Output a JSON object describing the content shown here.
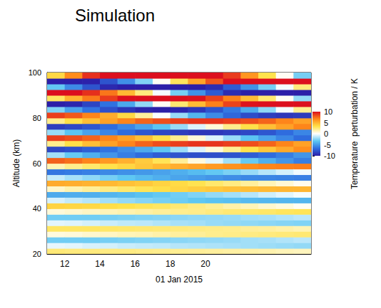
{
  "chart_data": {
    "type": "heatmap",
    "title": "Simulation",
    "x_label": "01 Jan 2015",
    "y_label": "Altitude (km)",
    "xlim": [
      11,
      26
    ],
    "xticks": [
      12,
      14,
      16,
      18,
      20
    ],
    "ylim": [
      20,
      100
    ],
    "yticks": [
      20,
      40,
      60,
      80,
      100
    ],
    "x": [
      11.5,
      12.5,
      13.5,
      14.5,
      15.5,
      16.5,
      17.5,
      18.5,
      19.5,
      20.5,
      21.5,
      22.5,
      23.5,
      24.5,
      25.5
    ],
    "y": [
      21.25,
      23.75,
      26.25,
      28.75,
      31.25,
      33.75,
      36.25,
      38.75,
      41.25,
      43.75,
      46.25,
      48.75,
      51.25,
      53.75,
      56.25,
      58.75,
      61.25,
      63.75,
      66.25,
      68.75,
      71.25,
      73.75,
      76.25,
      78.75,
      81.25,
      83.75,
      86.25,
      88.75,
      91.25,
      93.75,
      96.25,
      98.75
    ],
    "cells": [
      [
        2.5,
        -0.5,
        -2.9,
        0.6,
        2.9,
        -0.6,
        -2.9,
        0.7,
        3.9,
        -0.8,
        -4.4,
        1.0,
        5.4,
        -1.2,
        -6.4,
        1.4,
        7.8,
        -1.9,
        -8.3,
        2.1,
        8.7,
        -2.1,
        -8.7,
        2.1,
        8.7,
        -2.6,
        -10.6,
        2.9,
        11.6,
        -3.2,
        -12.5,
        3.7
      ],
      [
        2.4,
        -0.6,
        -2.9,
        0.7,
        2.9,
        -0.7,
        -2.9,
        0.9,
        3.8,
        -1.2,
        -4.3,
        1.5,
        5.3,
        -1.8,
        -6.2,
        2.1,
        7.4,
        -3.1,
        -7.9,
        3.4,
        8.3,
        -3.4,
        -8.3,
        3.4,
        8.0,
        -4.7,
        -9.7,
        5.1,
        10.6,
        -5.6,
        -11.5,
        6.6
      ],
      [
        2.4,
        -0.8,
        -2.9,
        0.9,
        2.9,
        -0.9,
        -2.9,
        1.1,
        3.7,
        -1.5,
        -4.2,
        1.9,
        5.1,
        -2.3,
        -6.0,
        2.7,
        6.8,
        -4.2,
        -7.3,
        4.7,
        7.7,
        -4.7,
        -7.7,
        4.7,
        6.8,
        -6.5,
        -8.4,
        7.1,
        9.1,
        -7.8,
        -9.9,
        9.1
      ],
      [
        2.3,
        -0.9,
        -2.8,
        1.1,
        2.8,
        -1.1,
        -2.8,
        1.3,
        3.5,
        -1.9,
        -4.0,
        2.3,
        4.9,
        -2.8,
        -5.7,
        3.3,
        6.1,
        -5.2,
        -6.5,
        5.8,
        6.8,
        -5.8,
        -6.8,
        5.8,
        5.4,
        -8.0,
        -6.6,
        8.8,
        7.2,
        -9.6,
        -7.8,
        11.2
      ],
      [
        2.3,
        -1.1,
        -2.7,
        1.3,
        2.7,
        -1.3,
        -2.7,
        1.5,
        3.3,
        -2.2,
        -3.8,
        2.7,
        4.6,
        -3.3,
        -5.4,
        3.8,
        5.2,
        -6.1,
        -5.5,
        6.8,
        5.8,
        -6.8,
        -5.8,
        6.8,
        3.7,
        -9.1,
        -4.5,
        10.0,
        4.9,
        -10.9,
        -5.4,
        12.8
      ],
      [
        2.2,
        -1.2,
        -2.6,
        1.4,
        2.6,
        -1.4,
        -2.6,
        1.7,
        3.1,
        -2.5,
        -3.5,
        3.1,
        4.3,
        -3.8,
        -5.1,
        4.4,
        4.2,
        -6.8,
        -4.4,
        7.7,
        4.7,
        -7.7,
        -4.7,
        7.7,
        1.8,
        -9.8,
        -2.2,
        10.8,
        2.4,
        -11.7,
        -2.6,
        13.7
      ],
      [
        2.1,
        -1.3,
        -2.5,
        1.6,
        2.5,
        -1.6,
        -2.5,
        1.9,
        2.9,
        -2.8,
        -3.2,
        3.5,
        3.9,
        -4.2,
        -4.7,
        4.9,
        3.1,
        -7.4,
        -3.3,
        8.3,
        3.4,
        -8.3,
        -3.4,
        8.3,
        -0.1,
        -10.0,
        0.2,
        11.0,
        -0.2,
        -12.0,
        0.2,
        14.0
      ],
      [
        2.0,
        -1.5,
        -2.4,
        1.8,
        2.4,
        -1.8,
        -2.4,
        2.1,
        2.6,
        -3.0,
        -2.9,
        3.8,
        3.6,
        -4.6,
        -4.2,
        5.3,
        1.9,
        -7.8,
        -2.0,
        8.7,
        2.1,
        -8.7,
        -2.1,
        8.7,
        -2.1,
        -9.7,
        2.6,
        10.7,
        -2.8,
        -11.7,
        3.0,
        13.6
      ],
      [
        1.9,
        -1.6,
        -2.3,
        1.9,
        2.3,
        -1.9,
        -2.3,
        2.2,
        2.3,
        -3.3,
        -2.6,
        4.1,
        3.2,
        -4.9,
        -3.7,
        5.7,
        0.6,
        -8.0,
        -0.7,
        9.0,
        0.7,
        -9.0,
        -0.7,
        9.0,
        -4.0,
        -9.0,
        4.8,
        9.9,
        -5.3,
        -10.8,
        5.7,
        12.6
      ],
      [
        1.8,
        -1.7,
        -2.2,
        2.1,
        2.2,
        -2.1,
        -2.2,
        2.4,
        2.0,
        -3.5,
        -2.2,
        4.3,
        2.7,
        -5.2,
        -3.2,
        6.1,
        -0.6,
        -8.0,
        0.7,
        9.0,
        -0.7,
        -9.0,
        0.7,
        9.0,
        -5.6,
        -7.8,
        6.9,
        8.6,
        -7.5,
        -9.4,
        8.1,
        10.9
      ],
      [
        1.7,
        -1.8,
        -2.1,
        2.2,
        2.1,
        -2.2,
        -2.1,
        2.6,
        1.6,
        -3.6,
        -1.9,
        4.6,
        2.3,
        -5.5,
        -2.7,
        6.4,
        -1.9,
        -7.8,
        2.0,
        8.7,
        -2.1,
        -8.7,
        2.1,
        8.7,
        -7.0,
        -6.3,
        8.6,
        6.9,
        -9.4,
        -7.5,
        10.1,
        8.8
      ],
      [
        1.6,
        -1.9,
        -1.9,
        2.3,
        1.9,
        -2.3,
        -1.9,
        2.7,
        1.3,
        -3.8,
        -1.5,
        4.7,
        1.8,
        -5.7,
        -2.1,
        6.6,
        -3.1,
        -7.4,
        3.3,
        8.3,
        -3.4,
        -8.3,
        3.4,
        8.3,
        -8.1,
        -4.4,
        9.9,
        4.8,
        -10.8,
        -5.3,
        11.7,
        6.2
      ],
      [
        1.5,
        -2.0,
        -1.8,
        2.4,
        1.8,
        -2.4,
        -1.8,
        2.8,
        0.9,
        -3.9,
        -1.0,
        4.9,
        1.3,
        -5.8,
        -1.5,
        6.8,
        -4.2,
        -6.8,
        4.4,
        7.7,
        -4.7,
        -7.7,
        4.7,
        7.7,
        -8.7,
        -2.3,
        10.7,
        2.6,
        -11.7,
        -2.8,
        12.6,
        3.3
      ],
      [
        1.3,
        -2.1,
        -1.6,
        2.5,
        1.6,
        -2.5,
        -1.6,
        3.0,
        0.6,
        -4.0,
        -0.6,
        5.0,
        0.8,
        -5.9,
        -0.9,
        6.9,
        -5.2,
        -6.1,
        5.5,
        6.8,
        -5.8,
        -6.8,
        5.8,
        6.8,
        -9.0,
        -0.2,
        11.0,
        0.2,
        -12.0,
        -0.2,
        13.0,
        0.2
      ],
      [
        1.2,
        -2.2,
        -1.4,
        2.6,
        1.4,
        -2.6,
        -1.4,
        3.1,
        0.2,
        -4.0,
        -0.2,
        5.0,
        0.3,
        -6.0,
        -0.3,
        7.0,
        -6.1,
        -5.2,
        6.5,
        5.8,
        -6.8,
        -5.8,
        6.8,
        5.8,
        -8.8,
        2.0,
        10.8,
        -2.2,
        -11.7,
        2.4,
        12.7,
        -2.8
      ]
    ],
    "colorbar": {
      "label": "Temperature  perturbation / K",
      "range": [
        -10,
        10
      ],
      "ticks": [
        -10,
        -5,
        0,
        5,
        10
      ]
    }
  }
}
